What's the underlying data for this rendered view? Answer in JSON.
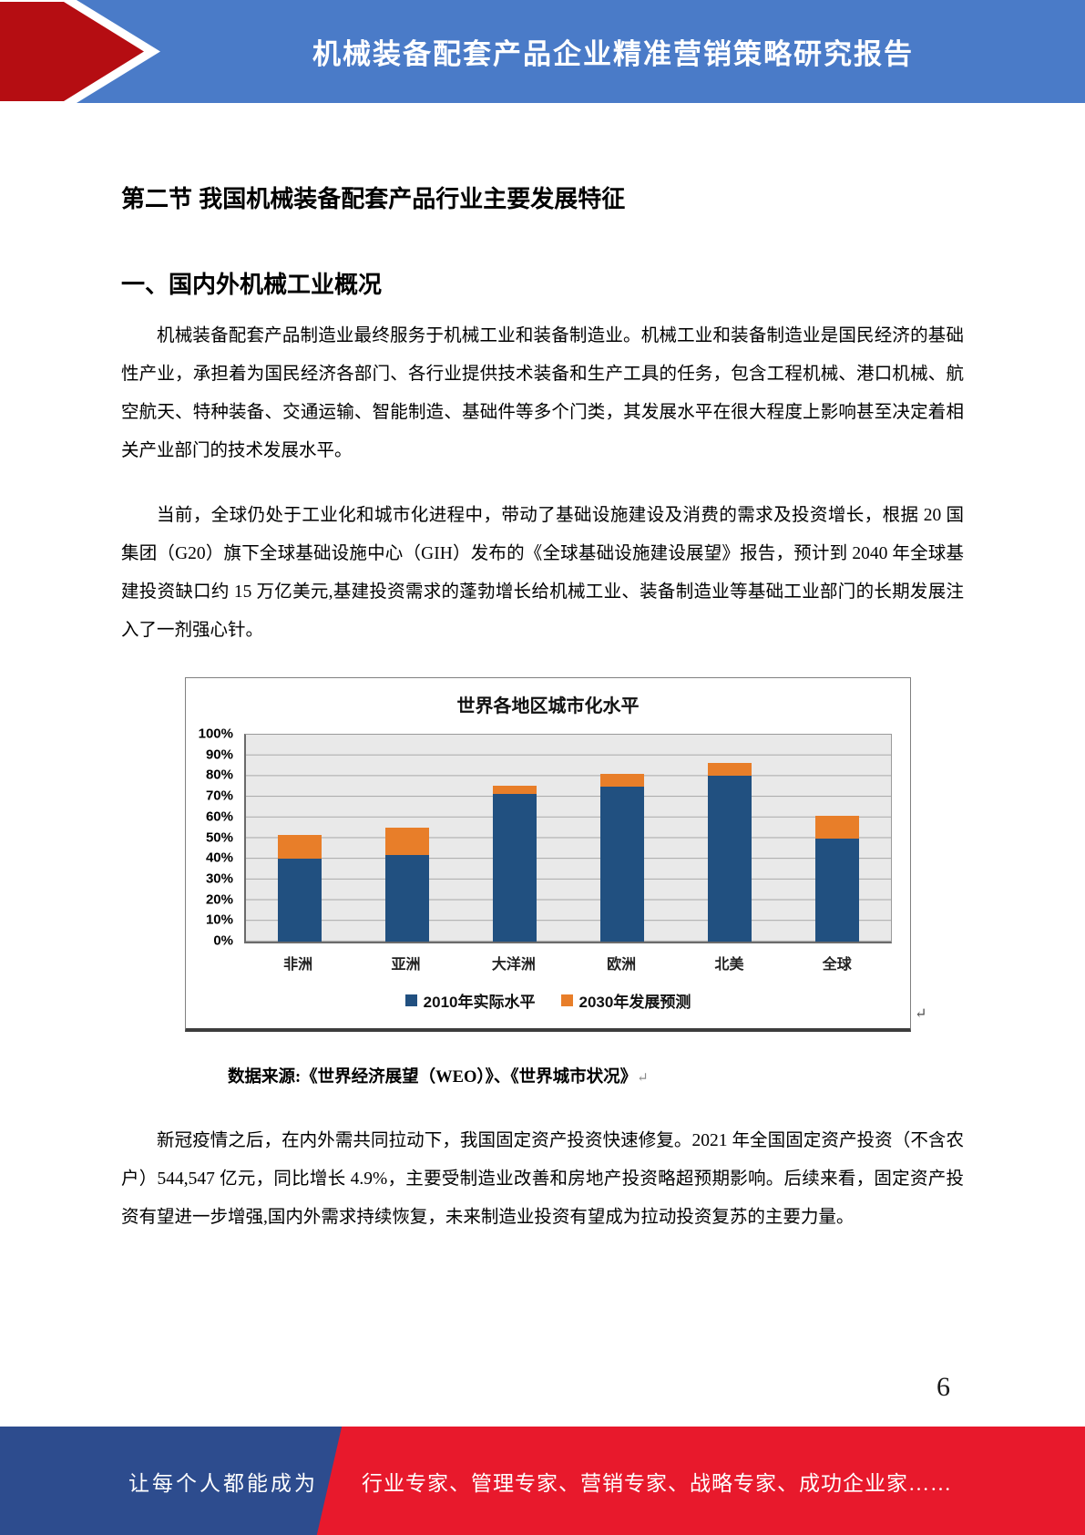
{
  "header": {
    "title": "机械装备配套产品企业精准营销策略研究报告",
    "banner_color": "#4a7bc8",
    "arrow_color": "#b50d12"
  },
  "document": {
    "section_title": "第二节 我国机械装备配套产品行业主要发展特征",
    "subsection_title": "一、国内外机械工业概况",
    "paragraphs": [
      "机械装备配套产品制造业最终服务于机械工业和装备制造业。机械工业和装备制造业是国民经济的基础性产业，承担着为国民经济各部门、各行业提供技术装备和生产工具的任务，包含工程机械、港口机械、航空航天、特种装备、交通运输、智能制造、基础件等多个门类，其发展水平在很大程度上影响甚至决定着相关产业部门的技术发展水平。",
      "当前，全球仍处于工业化和城市化进程中，带动了基础设施建设及消费的需求及投资增长，根据 20 国集团（G20）旗下全球基础设施中心（GIH）发布的《全球基础设施建设展望》报告，预计到 2040 年全球基建投资缺口约 15 万亿美元,基建投资需求的蓬勃增长给机械工业、装备制造业等基础工业部门的长期发展注入了一剂强心针。",
      "新冠疫情之后，在内外需共同拉动下，我国固定资产投资快速修复。2021 年全国固定资产投资（不含农户）544,547 亿元，同比增长 4.9%，主要受制造业改善和房地产投资略超预期影响。后续来看，固定资产投资有望进一步增强,国内外需求持续恢复，未来制造业投资有望成为拉动投资复苏的主要力量。"
    ],
    "data_source": "数据来源:《世界经济展望（WEO）》、《世界城市状况》",
    "return_mark": "↵",
    "page_number": "6"
  },
  "chart_data": {
    "type": "bar",
    "stacked": true,
    "title": "世界各地区城市化水平",
    "categories": [
      "非洲",
      "亚洲",
      "大洋洲",
      "欧洲",
      "北美",
      "全球"
    ],
    "series": [
      {
        "name": "2010年实际水平",
        "color": "#215080",
        "values": [
          40,
          42,
          71.5,
          75,
          80,
          50
        ]
      },
      {
        "name": "2030年发展预测",
        "color": "#e87e29",
        "values": [
          51.5,
          55,
          75.5,
          81,
          86.5,
          61
        ],
        "note": "values are stacked totals; visible orange segment = total minus 2010 value"
      }
    ],
    "ylabel": "",
    "xlabel": "",
    "ylim": [
      0,
      100
    ],
    "ytick_step": 10,
    "ytick_format": "percent",
    "grid": true,
    "legend_position": "bottom",
    "plot_background": "#e9e9e9"
  },
  "footer": {
    "left_text": "让每个人都能成为",
    "right_text": "行业专家、管理专家、营销专家、战略专家、成功企业家……",
    "blue_color": "#2d4c8e",
    "red_color": "#e8192c"
  }
}
